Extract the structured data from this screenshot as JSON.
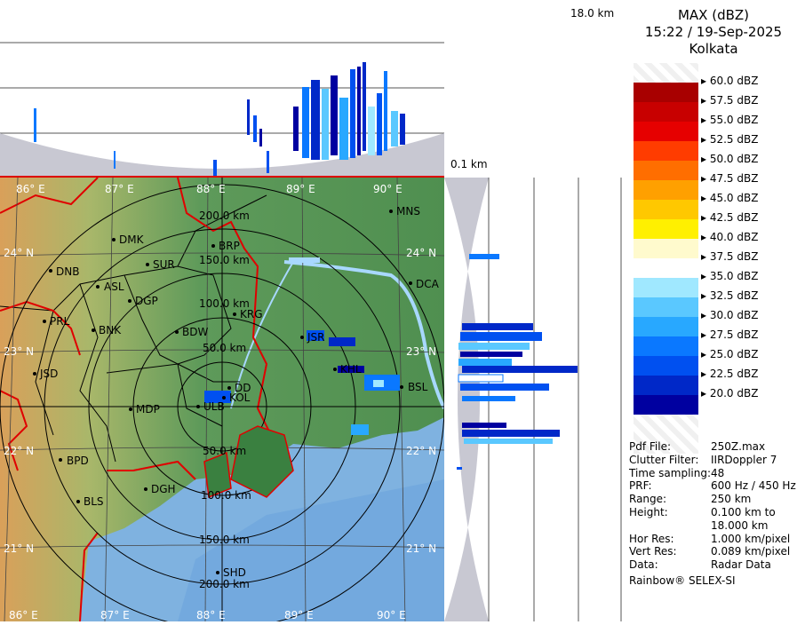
{
  "header": {
    "product": "MAX (dBZ)",
    "datetime": "15:22 / 19-Sep-2025",
    "station": "Kolkata"
  },
  "height_labels": {
    "top": "18.0 km",
    "bottom": "0.1 km"
  },
  "legend": {
    "ticks": [
      "60.0 dBZ",
      "57.5 dBZ",
      "55.0 dBZ",
      "52.5 dBZ",
      "50.0 dBZ",
      "47.5 dBZ",
      "45.0 dBZ",
      "42.5 dBZ",
      "40.0 dBZ",
      "37.5 dBZ",
      "35.0 dBZ",
      "32.5 dBZ",
      "30.0 dBZ",
      "27.5 dBZ",
      "25.0 dBZ",
      "22.5 dBZ",
      "20.0 dBZ"
    ],
    "colors": [
      "#ffffff",
      "#a80000",
      "#c80000",
      "#e60000",
      "#ff3c00",
      "#ff6e00",
      "#ffa000",
      "#ffc800",
      "#fff000",
      "#fffacd",
      "#ffffff",
      "#a0e8ff",
      "#5ac8ff",
      "#28a8ff",
      "#0a78ff",
      "#0050f0",
      "#0028c8",
      "#0000a0"
    ]
  },
  "info": [
    {
      "key": "Pdf File:",
      "value": "250Z.max"
    },
    {
      "key": "Clutter Filter:",
      "value": "IIRDoppler 7"
    },
    {
      "key": "Time sampling:",
      "value": "48"
    },
    {
      "key": "PRF:",
      "value": "600 Hz / 450 Hz"
    },
    {
      "key": "Range:",
      "value": "250 km"
    },
    {
      "key": "Height:",
      "value": "0.100 km to"
    },
    {
      "key": "",
      "value": "18.000 km"
    },
    {
      "key": "Hor Res:",
      "value": "1.000 km/pixel"
    },
    {
      "key": "Vert Res:",
      "value": "0.089 km/pixel"
    },
    {
      "key": "Data:",
      "value": "Radar Data"
    }
  ],
  "footer": "Rainbow® SELEX-SI",
  "map": {
    "lon_top": [
      "86° E",
      "87° E",
      "88° E",
      "89° E",
      "90° E"
    ],
    "lon_bottom": [
      "86° E",
      "87° E",
      "88° E",
      "89° E",
      "90° E"
    ],
    "lat_left": [
      "24° N",
      "23° N",
      "22° N",
      "21° N"
    ],
    "lat_right": [
      "24° N",
      "23° N",
      "22° N",
      "21° N"
    ],
    "range_rings": [
      "50.0 km",
      "100.0 km",
      "150.0 km",
      "200.0 km"
    ],
    "range_rings_south": [
      "50.0 km",
      "100.0 km",
      "150.0 km",
      "200.0 km"
    ],
    "cities": [
      {
        "name": "MNS"
      },
      {
        "name": "DMK"
      },
      {
        "name": "BRP"
      },
      {
        "name": "DNB"
      },
      {
        "name": "SUR"
      },
      {
        "name": "ASL"
      },
      {
        "name": "DGP"
      },
      {
        "name": "DCA"
      },
      {
        "name": "KRG"
      },
      {
        "name": "PRL"
      },
      {
        "name": "BNK"
      },
      {
        "name": "BDW"
      },
      {
        "name": "JSR"
      },
      {
        "name": "KHL"
      },
      {
        "name": "JSD"
      },
      {
        "name": "DD"
      },
      {
        "name": "KOL"
      },
      {
        "name": "BSL"
      },
      {
        "name": "MDP"
      },
      {
        "name": "ULB"
      },
      {
        "name": "BPD"
      },
      {
        "name": "DGH"
      },
      {
        "name": "BLS"
      },
      {
        "name": "SHD"
      }
    ]
  }
}
